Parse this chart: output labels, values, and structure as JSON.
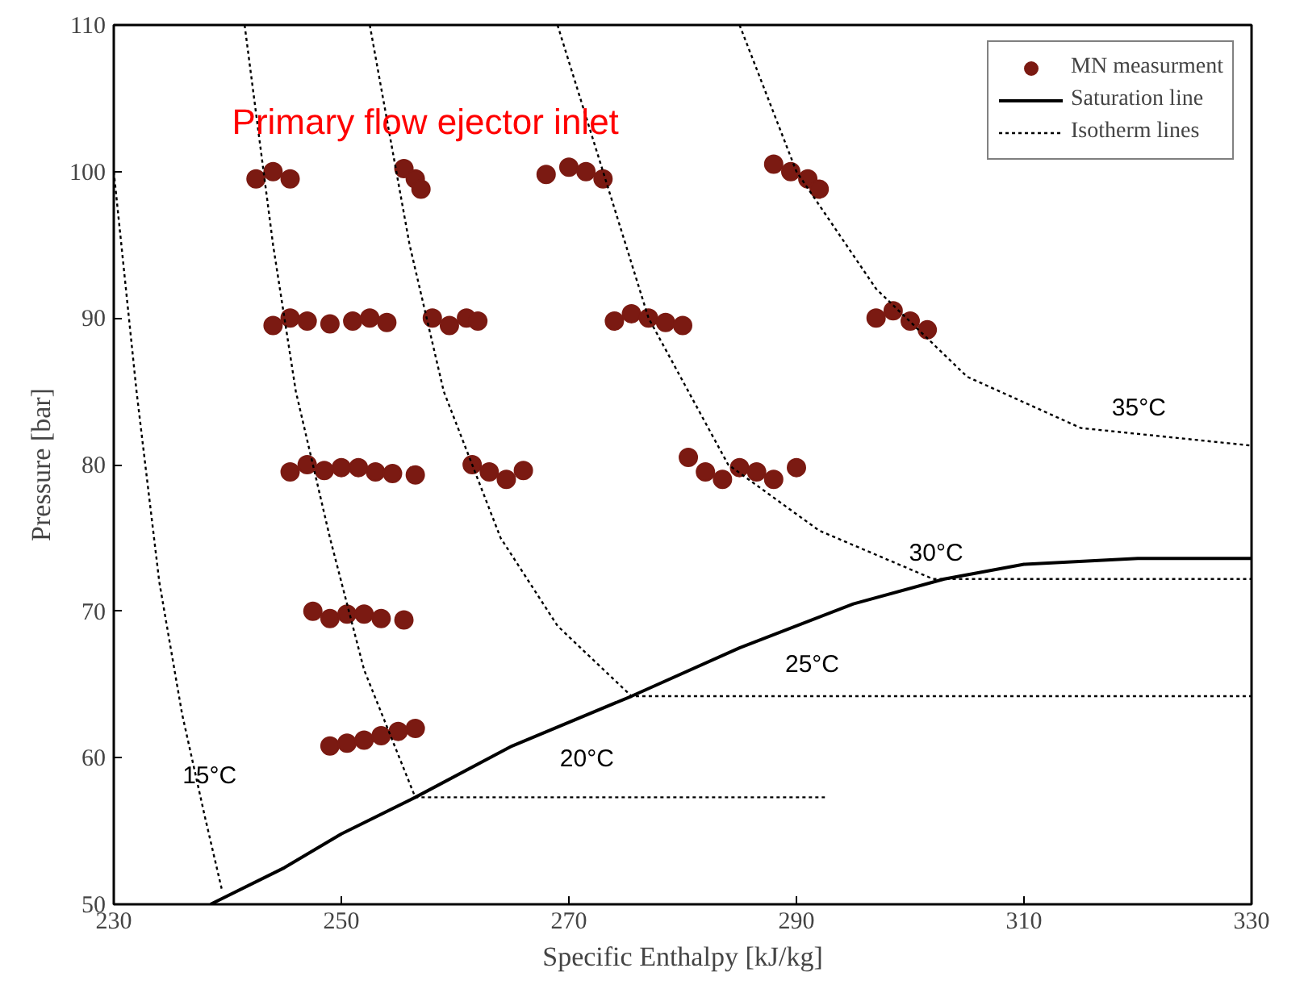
{
  "chart_data": {
    "type": "scatter",
    "xlabel": "Specific Enthalpy [kJ/kg]",
    "ylabel": "Pressure [bar]",
    "xlim": [
      230,
      330
    ],
    "ylim": [
      50,
      110
    ],
    "xticks": [
      230,
      250,
      270,
      290,
      310,
      330
    ],
    "yticks": [
      50,
      60,
      70,
      80,
      90,
      100,
      110
    ],
    "grid": false,
    "legend": "top right",
    "annotations": [
      "Primary flow ejector inlet",
      "15°C",
      "20°C",
      "25°C",
      "30°C",
      "35°C"
    ],
    "series": [
      {
        "name": "MN measurment",
        "marker": "circle",
        "color": "#7b1a12",
        "x": [
          242.5,
          244,
          245.5,
          255.5,
          256.5,
          257,
          268,
          270,
          271.5,
          273,
          288,
          289.5,
          291,
          292,
          244,
          245.5,
          247,
          249,
          251,
          252.5,
          254,
          258,
          259.5,
          261,
          262,
          274,
          275.5,
          277,
          278.5,
          280,
          297,
          298.5,
          300,
          301.5,
          245.5,
          247,
          248.5,
          250,
          251.5,
          253,
          254.5,
          256.5,
          261.5,
          263,
          264.5,
          266,
          280.5,
          282,
          283.5,
          285,
          286.5,
          288,
          290,
          247.5,
          249,
          250.5,
          252,
          253.5,
          255.5,
          249,
          250.5,
          252,
          253.5,
          255,
          256.5
        ],
        "values": [
          99.5,
          100,
          99.5,
          100.2,
          99.5,
          98.8,
          99.8,
          100.3,
          100,
          99.5,
          100.5,
          100,
          99.5,
          98.8,
          89.5,
          90,
          89.8,
          89.6,
          89.8,
          90,
          89.7,
          90,
          89.5,
          90,
          89.8,
          89.8,
          90.3,
          90,
          89.7,
          89.5,
          90,
          90.5,
          89.8,
          89.2,
          79.5,
          80,
          79.6,
          79.8,
          79.8,
          79.5,
          79.4,
          79.3,
          80,
          79.5,
          79,
          79.6,
          80.5,
          79.5,
          79,
          79.8,
          79.5,
          79,
          79.8,
          70,
          69.5,
          69.8,
          69.8,
          69.5,
          69.4,
          60.8,
          61,
          61.2,
          61.5,
          61.8,
          62
        ]
      },
      {
        "name": "Saturation line",
        "type": "line",
        "line_style": "solid",
        "color": "#000000",
        "x": [
          238.5,
          245,
          250,
          256.5,
          265,
          275.5,
          285,
          295,
          303,
          310,
          320,
          330
        ],
        "values": [
          50,
          52.5,
          54.8,
          57.3,
          60.8,
          64.2,
          67.5,
          70.5,
          72.2,
          73.2,
          73.6,
          73.6
        ]
      },
      {
        "name": "Isotherm lines",
        "type": "line",
        "line_style": "dotted",
        "color": "#000000",
        "x": [
          230,
          232,
          234,
          236,
          238,
          239.5
        ],
        "values": [
          100,
          85,
          72,
          63,
          56,
          51
        ]
      },
      {
        "type": "line",
        "line_style": "dotted",
        "color": "#000000",
        "x": [
          241.5,
          244,
          246,
          249,
          252,
          256.5,
          292.5
        ],
        "values": [
          110,
          95,
          85,
          75,
          66,
          57.3,
          57.3
        ]
      },
      {
        "type": "line",
        "line_style": "dotted",
        "color": "#000000",
        "x": [
          252.5,
          256,
          259,
          264,
          269,
          275.5,
          330
        ],
        "values": [
          110,
          95,
          85,
          75,
          69,
          64.2,
          64.2
        ]
      },
      {
        "type": "line",
        "line_style": "dotted",
        "color": "#000000",
        "x": [
          269,
          273,
          277,
          284,
          292,
          302,
          330
        ],
        "values": [
          110,
          100,
          90,
          80,
          75.5,
          72.2,
          72.2
        ]
      },
      {
        "type": "line",
        "line_style": "dotted",
        "color": "#000000",
        "x": [
          285,
          290,
          297,
          305,
          315,
          330
        ],
        "values": [
          110,
          100,
          92,
          86,
          82.5,
          81.3
        ]
      }
    ]
  }
}
